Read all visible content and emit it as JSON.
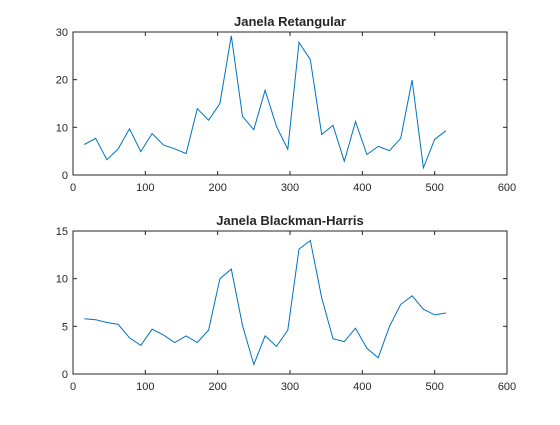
{
  "chart_data": [
    {
      "type": "line",
      "title": "Janela Retangular",
      "xlabel": "",
      "ylabel": "",
      "xlim": [
        0,
        600
      ],
      "ylim": [
        0,
        30
      ],
      "xticks": [
        0,
        100,
        200,
        300,
        400,
        500,
        600
      ],
      "yticks": [
        0,
        10,
        20,
        30
      ],
      "grid": false,
      "legend": "none",
      "color": "#0072BD",
      "series": [
        {
          "x": [
            15.6,
            31.3,
            46.9,
            62.5,
            78.1,
            93.8,
            109.4,
            125.0,
            140.6,
            156.3,
            171.9,
            187.5,
            203.1,
            218.8,
            234.4,
            250.0,
            265.6,
            281.3,
            296.9,
            312.5,
            328.1,
            343.8,
            359.4,
            375.0,
            390.6,
            406.3,
            421.9,
            437.5,
            453.1,
            468.8,
            484.4,
            500.0,
            515.6
          ],
          "y": [
            6.4,
            7.7,
            3.2,
            5.5,
            9.7,
            4.9,
            8.7,
            6.3,
            5.5,
            4.5,
            13.9,
            11.5,
            15.0,
            29.2,
            12.3,
            9.5,
            17.8,
            10.2,
            5.4,
            27.8,
            24.2,
            8.5,
            10.4,
            2.9,
            11.2,
            4.3,
            6.0,
            5.1,
            7.7,
            19.9,
            1.5,
            7.5,
            9.3
          ]
        }
      ]
    },
    {
      "type": "line",
      "title": "Janela Blackman-Harris",
      "xlabel": "",
      "ylabel": "",
      "xlim": [
        0,
        600
      ],
      "ylim": [
        0,
        15
      ],
      "xticks": [
        0,
        100,
        200,
        300,
        400,
        500,
        600
      ],
      "yticks": [
        0,
        5,
        10,
        15
      ],
      "grid": false,
      "legend": "none",
      "color": "#0072BD",
      "series": [
        {
          "x": [
            15.6,
            31.3,
            46.9,
            62.5,
            78.1,
            93.8,
            109.4,
            125.0,
            140.6,
            156.3,
            171.9,
            187.5,
            203.1,
            218.8,
            234.4,
            250.0,
            265.6,
            281.3,
            296.9,
            312.5,
            328.1,
            343.8,
            359.4,
            375.0,
            390.6,
            406.3,
            421.9,
            437.5,
            453.1,
            468.8,
            484.4,
            500.0,
            515.6
          ],
          "y": [
            5.8,
            5.7,
            5.4,
            5.2,
            3.8,
            3.0,
            4.7,
            4.1,
            3.3,
            4.0,
            3.3,
            4.6,
            10.0,
            11.0,
            5.1,
            1.0,
            4.0,
            2.9,
            4.6,
            13.1,
            14.0,
            8.0,
            3.7,
            3.4,
            4.8,
            2.7,
            1.7,
            5.0,
            7.3,
            8.2,
            6.8,
            6.2,
            6.4
          ]
        }
      ]
    }
  ]
}
